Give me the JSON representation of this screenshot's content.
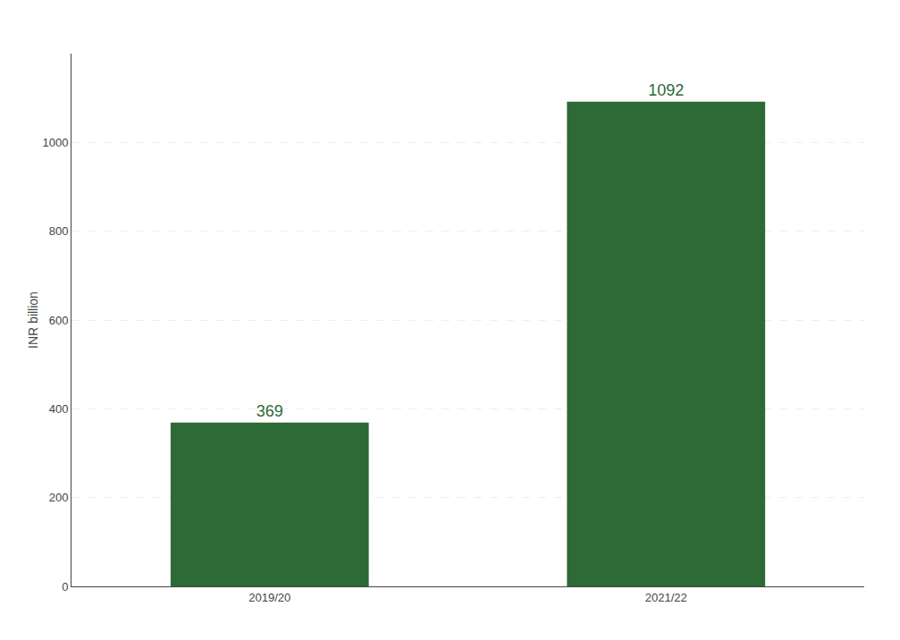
{
  "chart_data": {
    "type": "bar",
    "categories": [
      "2019/20",
      "2021/22"
    ],
    "values": [
      369,
      1092
    ],
    "color": "#2d6a35",
    "ylabel": "INR billion",
    "ylim": [
      0,
      1200
    ],
    "yticks": [
      0,
      200,
      400,
      600,
      800,
      1000
    ],
    "grid": true,
    "data_labels": true
  }
}
